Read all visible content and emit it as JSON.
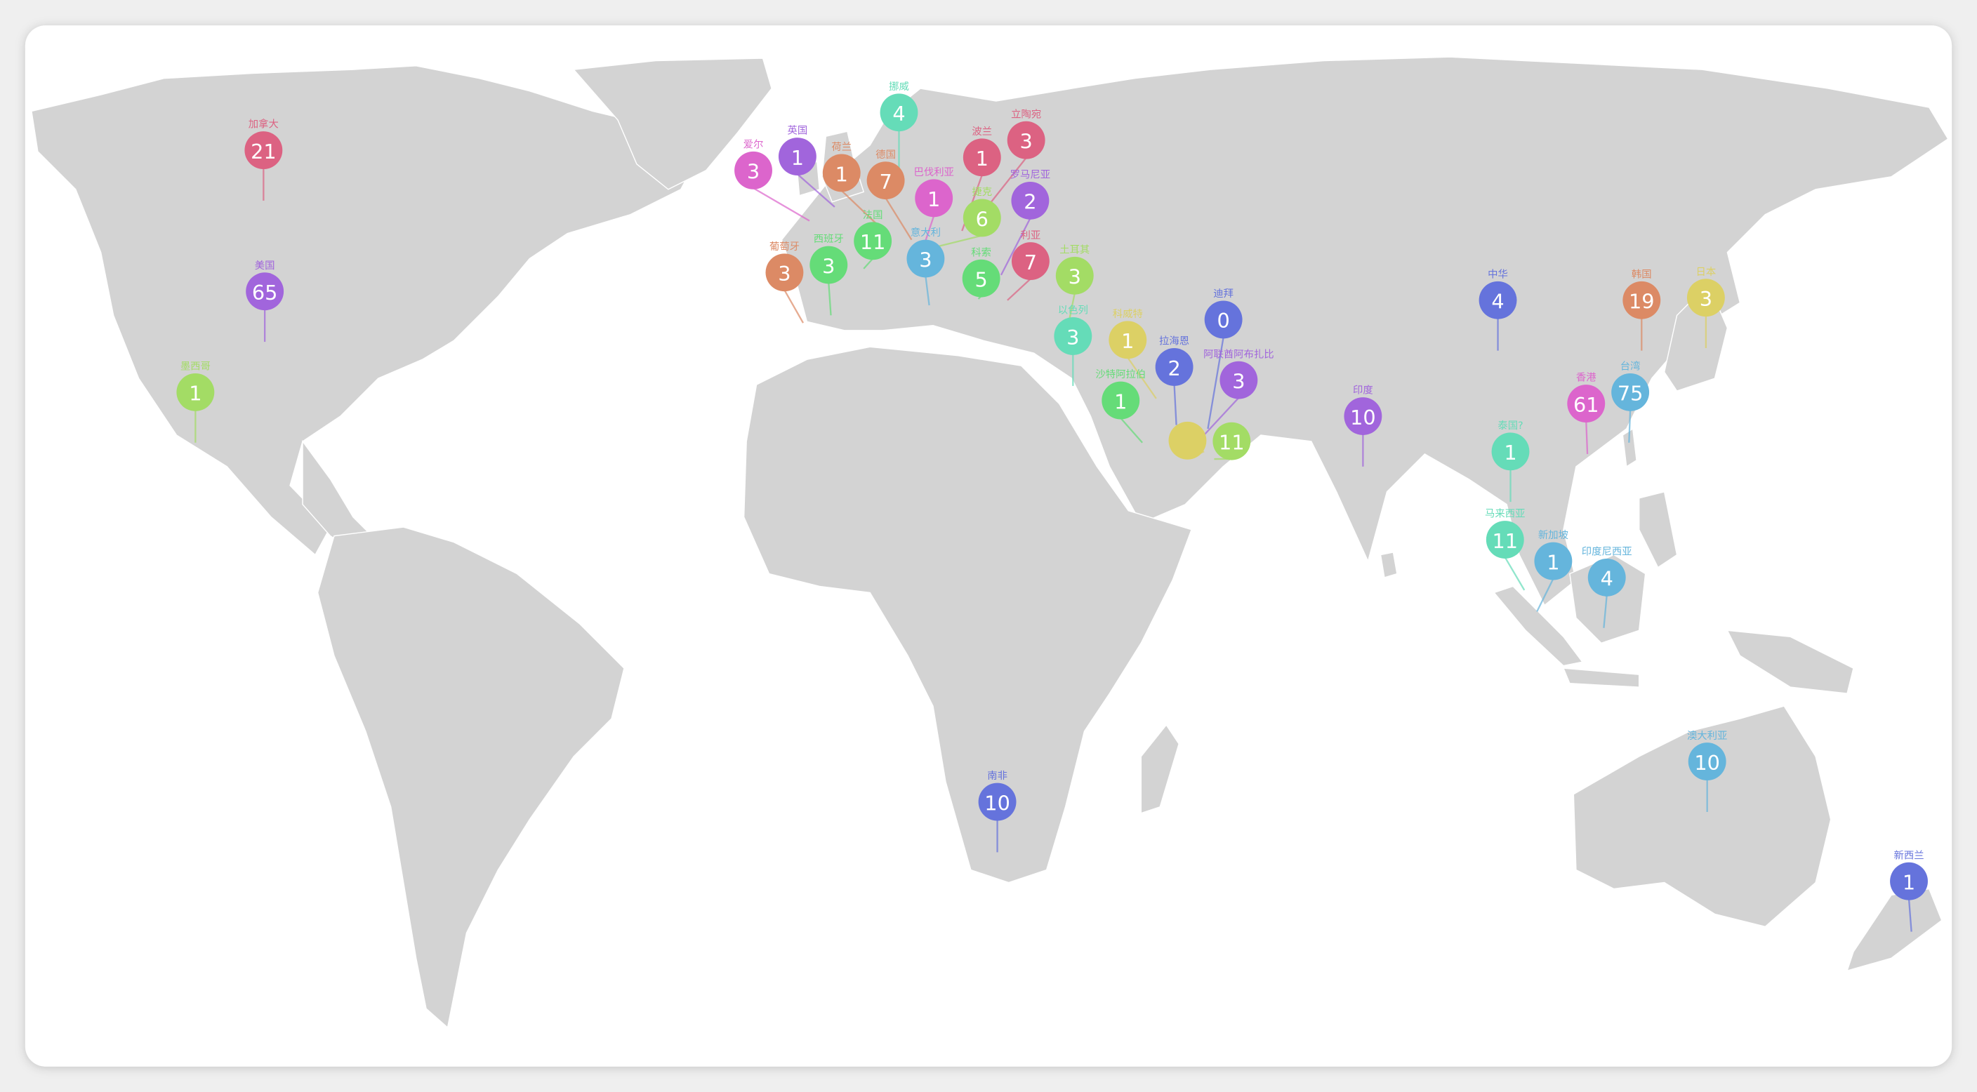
{
  "map": {
    "land_color": "#d3d3d3",
    "border_color": "#ffffff",
    "background": "#ffffff"
  },
  "pins": [
    {
      "label": "加拿大",
      "value": "21",
      "color": "#dc6282"
    },
    {
      "label": "美国",
      "value": "65",
      "color": "#a165dc"
    },
    {
      "label": "墨西哥",
      "value": "1",
      "color": "#a3dc65"
    },
    {
      "label": "挪威",
      "value": "4",
      "color": "#65dcb8"
    },
    {
      "label": "爱尔",
      "value": "3",
      "color": "#dc65cc"
    },
    {
      "label": "英国",
      "value": "1",
      "color": "#a165dc"
    },
    {
      "label": "荷兰",
      "value": "1",
      "color": "#dc8a65"
    },
    {
      "label": "德国",
      "value": "7",
      "color": "#dc8a65"
    },
    {
      "label": "捷克",
      "value": "6",
      "color": "#a3dc65"
    },
    {
      "label": "巴伐利亚",
      "value": "1",
      "color": "#dc65cc"
    },
    {
      "label": "立陶宛",
      "value": "3",
      "color": "#dc6282"
    },
    {
      "label": "波兰",
      "value": "1",
      "color": "#dc6282"
    },
    {
      "label": "法国",
      "value": "11",
      "color": "#65dc78"
    },
    {
      "label": "葡萄牙",
      "value": "3",
      "color": "#dc8a65"
    },
    {
      "label": "西班牙",
      "value": "3",
      "color": "#65dc78"
    },
    {
      "label": "意大利",
      "value": "3",
      "color": "#65b5dc"
    },
    {
      "label": "利亚",
      "value": "7",
      "color": "#dc6282"
    },
    {
      "label": "科索",
      "value": "5",
      "color": "#65dc78"
    },
    {
      "label": "罗马尼亚",
      "value": "2",
      "color": "#a165dc"
    },
    {
      "label": "土耳其",
      "value": "3",
      "color": "#a3dc65"
    },
    {
      "label": "以色列",
      "value": "3",
      "color": "#65dcb8"
    },
    {
      "label": "科威特",
      "value": "1",
      "color": "#dcd065"
    },
    {
      "label": "沙特阿拉伯",
      "value": "1",
      "color": "#65dc78"
    },
    {
      "label": "",
      "value": "",
      "color": "#dcd065"
    },
    {
      "label": "迪拜",
      "value": "0",
      "color": "#6573dc"
    },
    {
      "label": "",
      "value": "11",
      "color": "#a3dc65"
    },
    {
      "label": "拉海恩",
      "value": "2",
      "color": "#6573dc"
    },
    {
      "label": "阿联酋阿布扎比",
      "value": "3",
      "color": "#a165dc"
    },
    {
      "label": "中华",
      "value": "4",
      "color": "#6573dc"
    },
    {
      "label": "韩国",
      "value": "19",
      "color": "#dc8a65"
    },
    {
      "label": "日本",
      "value": "3",
      "color": "#dcd065"
    },
    {
      "label": "印度",
      "value": "10",
      "color": "#a165dc"
    },
    {
      "label": "香港",
      "value": "61",
      "color": "#dc65cc"
    },
    {
      "label": "台湾",
      "value": "75",
      "color": "#65b5dc"
    },
    {
      "label": "泰国?",
      "value": "1",
      "color": "#65dcb8"
    },
    {
      "label": "马来西亚",
      "value": "11",
      "color": "#65dcb8"
    },
    {
      "label": "新加坡",
      "value": "1",
      "color": "#65b5dc"
    },
    {
      "label": "印度尼西亚",
      "value": "4",
      "color": "#65b5dc"
    },
    {
      "label": "南非",
      "value": "10",
      "color": "#6573dc"
    },
    {
      "label": "澳大利亚",
      "value": "10",
      "color": "#65b5dc"
    },
    {
      "label": "新西兰",
      "value": "1",
      "color": "#6573dc"
    }
  ]
}
